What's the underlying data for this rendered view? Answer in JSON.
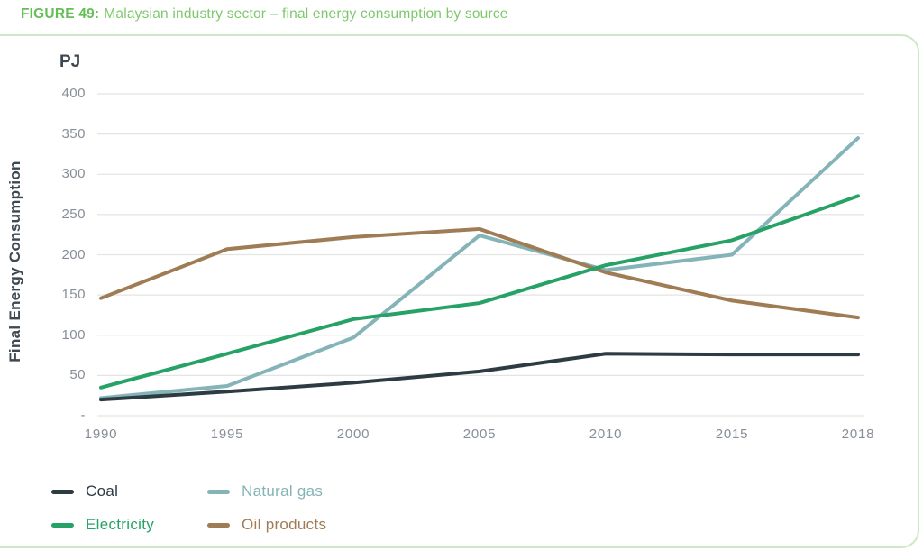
{
  "figure": {
    "label": "FIGURE 49:",
    "title": "Malaysian industry sector – final energy consumption by source"
  },
  "chart_data": {
    "type": "line",
    "title": "Malaysian industry sector – final energy consumption by source",
    "unit_label": "PJ",
    "ylabel": "Final Energy Consumption",
    "xlabel": "",
    "categories": [
      "1990",
      "1995",
      "2000",
      "2005",
      "2010",
      "2015",
      "2018"
    ],
    "series": [
      {
        "name": "Coal",
        "color": "#2d3b42",
        "values": [
          20,
          30,
          41,
          55,
          77,
          76,
          76
        ]
      },
      {
        "name": "Natural gas",
        "color": "#84b4b8",
        "values": [
          22,
          37,
          97,
          224,
          181,
          200,
          345
        ]
      },
      {
        "name": "Electricity",
        "color": "#27a266",
        "values": [
          35,
          77,
          120,
          140,
          187,
          218,
          273
        ]
      },
      {
        "name": "Oil products",
        "color": "#9f7c54",
        "values": [
          146,
          207,
          222,
          232,
          178,
          143,
          122
        ]
      }
    ],
    "ylim": [
      0,
      400
    ],
    "yticks": [
      0,
      50,
      100,
      150,
      200,
      250,
      300,
      350,
      400
    ],
    "ytick_labels": [
      "-",
      "50",
      "100",
      "150",
      "200",
      "250",
      "300",
      "350",
      "400"
    ],
    "grid": "horizontal",
    "gridline_color": "#e4e4e4",
    "legend_position": "bottom-left",
    "legend_order": [
      "Coal",
      "Natural gas",
      "Electricity",
      "Oil products"
    ]
  },
  "colors": {
    "figure_label_green": "#65bf57",
    "figure_title_green": "#7cc96c",
    "panel_border": "#cfe8c4",
    "tick_text": "#878e97",
    "axis_title_text": "#3d4850"
  }
}
